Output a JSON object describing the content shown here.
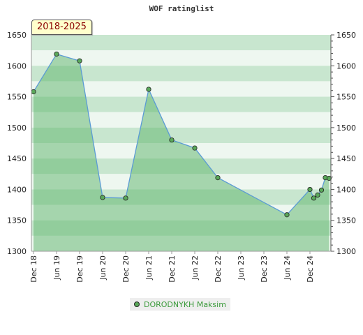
{
  "chart_data": {
    "type": "area",
    "title": "WOF ratinglist",
    "range_label": "2018-2025",
    "ylim": [
      1300,
      1650
    ],
    "yticks": [
      1300,
      1350,
      1400,
      1450,
      1500,
      1550,
      1600,
      1650
    ],
    "xticks": [
      "Dec 18",
      "Jun 19",
      "Dec 19",
      "Jun 20",
      "Dec 20",
      "Jun 21",
      "Dec 21",
      "Jun 22",
      "Dec 22",
      "Jun 23",
      "Dec 23",
      "Jun 24",
      "Dec 24"
    ],
    "legend_position": "bottom",
    "series": [
      {
        "name": "DORODNYKH Maksim",
        "points": [
          {
            "x": "Dec 18",
            "y": 1558
          },
          {
            "x": "Jun 19",
            "y": 1619
          },
          {
            "x": "Dec 19",
            "y": 1608
          },
          {
            "x": "Jun 20",
            "y": 1387
          },
          {
            "x": "Dec 20",
            "y": 1386
          },
          {
            "x": "Jun 21",
            "y": 1562
          },
          {
            "x": "Dec 21",
            "y": 1480
          },
          {
            "x": "Jun 22",
            "y": 1467
          },
          {
            "x": "Dec 22",
            "y": 1419
          },
          {
            "x": "Jun 24",
            "y": 1359
          },
          {
            "x": "Dec 24",
            "y": 1400
          },
          {
            "x": "Jan 25",
            "y": 1386
          },
          {
            "x": "Feb 25",
            "y": 1391
          },
          {
            "x": "Mar 25",
            "y": 1399
          },
          {
            "x": "Apr 25",
            "y": 1419
          },
          {
            "x": "May 25",
            "y": 1418
          }
        ]
      }
    ],
    "colors": {
      "line": "#5b9bd5",
      "fill": "#5cb46a",
      "marker": "#5aa85a",
      "band_dark": "#c8e6cf",
      "band_light": "#eef7f0",
      "legend_text": "#3a9a3a"
    }
  }
}
